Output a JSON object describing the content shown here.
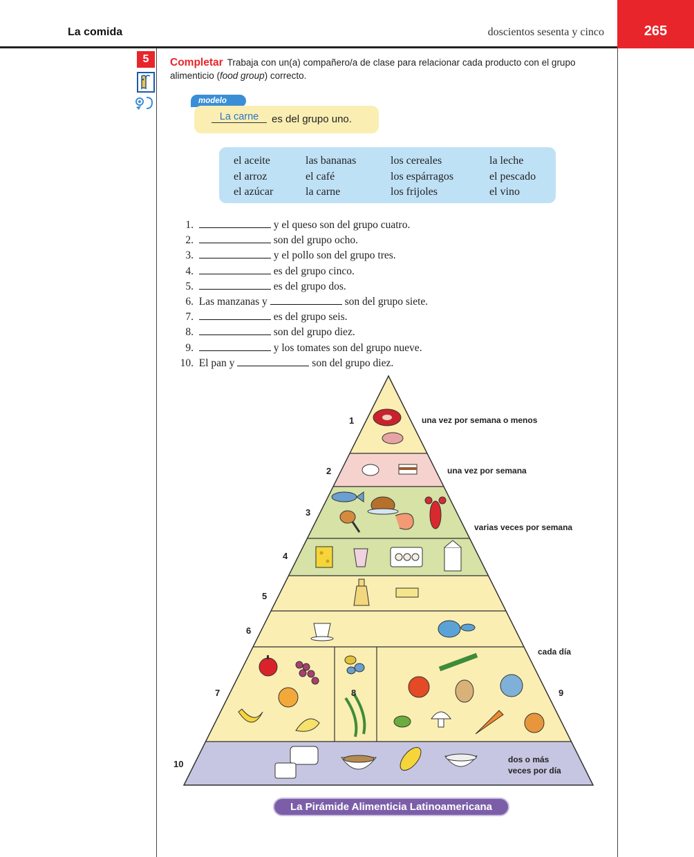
{
  "header": {
    "chapter": "La comida",
    "page_words": "doscientos sesenta y cinco",
    "page_number": "265"
  },
  "activity": {
    "number": "5",
    "title": "Completar",
    "instructions_1": "Trabaja con un(a) compañero/a de clase para relacionar cada producto con el grupo alimenticio (",
    "instructions_em": "food group",
    "instructions_2": ") correcto."
  },
  "modelo": {
    "tab": "modelo",
    "answer": "La carne",
    "rest": "es del grupo uno."
  },
  "word_bank": [
    [
      "el aceite",
      "el arroz",
      "el azúcar"
    ],
    [
      "las bananas",
      "el café",
      "la carne"
    ],
    [
      "los cereales",
      "los espárragos",
      "los frijoles"
    ],
    [
      "la leche",
      "el pescado",
      "el vino"
    ]
  ],
  "exercises": [
    {
      "num": "1.",
      "before": "",
      "after": "y el queso son del grupo cuatro."
    },
    {
      "num": "2.",
      "before": "",
      "after": "son del grupo ocho."
    },
    {
      "num": "3.",
      "before": "",
      "after": "y el pollo son del grupo tres."
    },
    {
      "num": "4.",
      "before": "",
      "after": "es del grupo cinco."
    },
    {
      "num": "5.",
      "before": "",
      "after": "es del grupo dos."
    },
    {
      "num": "6.",
      "before": "Las manzanas y",
      "after": "son del grupo siete."
    },
    {
      "num": "7.",
      "before": "",
      "after": "es del grupo seis."
    },
    {
      "num": "8.",
      "before": "",
      "after": "son del grupo diez."
    },
    {
      "num": "9.",
      "before": "",
      "after": "y los tomates son del grupo nueve."
    },
    {
      "num": "10.",
      "before": "El pan y",
      "after": "son del grupo diez."
    }
  ],
  "pyramid": {
    "levels": [
      "1",
      "2",
      "3",
      "4",
      "5",
      "6",
      "7",
      "8",
      "9",
      "10"
    ],
    "labels": {
      "l1": "una vez por semana o menos",
      "l2": "una vez por semana",
      "l3": "varias veces por semana",
      "l4": "cada día",
      "l5a": "dos o más",
      "l5b": "veces por día"
    },
    "caption": "La Pirámide Alimenticia Latinoamericana",
    "colors": {
      "tier1": "#fbeeb3",
      "tier2": "#f6d2cf",
      "tier3": "#d6e2a6",
      "tier4": "#d6e2a6",
      "tier5": "#fbeeb3",
      "tier6": "#fbeeb3",
      "tier7": "#fbeeb3",
      "tier10": "#c7c6e2",
      "caption": "#7c5ea8"
    },
    "food_icons": [
      "steak-icon",
      "ham-icon",
      "sugar-bowl-icon",
      "cake-icon",
      "fish-icon",
      "roast-chicken-icon",
      "chicken-leg-icon",
      "shrimp-icon",
      "lobster-icon",
      "cheese-icon",
      "yogurt-icon",
      "eggs-icon",
      "milk-carton-icon",
      "oil-bottle-icon",
      "butter-icon",
      "coffee-cup-icon",
      "teapot-icon",
      "apple-icon",
      "grapes-icon",
      "orange-icon",
      "banana-icon",
      "lemon-icon",
      "beans-icon",
      "green-beans-icon",
      "asparagus-icon",
      "tomato-icon",
      "potato-icon",
      "cabbage-icon",
      "peas-icon",
      "mushroom-icon",
      "carrot-icon",
      "onion-icon",
      "bread-icon",
      "cereal-bowl-icon",
      "corn-icon",
      "rice-bowl-icon"
    ]
  }
}
